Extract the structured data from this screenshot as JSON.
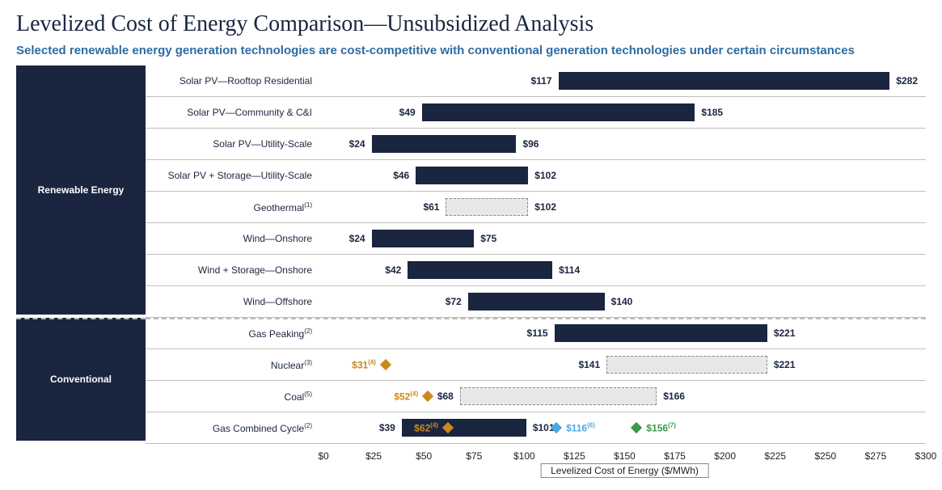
{
  "title": "Levelized Cost of Energy Comparison—Unsubsidized Analysis",
  "subtitle": "Selected renewable energy generation technologies are cost-competitive with conventional generation technologies under certain circumstances",
  "subtitle_color": "#2e6ca4",
  "axis": {
    "title": "Levelized Cost of Energy ($/MWh)",
    "min": 0,
    "max": 300,
    "step": 25,
    "tick_prefix": "$"
  },
  "colors": {
    "bar_solid": "#1a2540",
    "bar_dashed_fill": "#e8e8e8",
    "bar_dashed_border": "#888888",
    "gold": "#c98a1e",
    "blue": "#4aa8e0",
    "green": "#3a9a4a",
    "text": "#1a2540"
  },
  "categories": [
    {
      "label": "Renewable Energy",
      "row_count": 8
    },
    {
      "label": "Conventional",
      "row_count": 4
    }
  ],
  "rows": [
    {
      "label": "Solar PV—Rooftop Residential",
      "low": 117,
      "high": 282,
      "style": "solid"
    },
    {
      "label": "Solar PV—Community & C&I",
      "low": 49,
      "high": 185,
      "style": "solid"
    },
    {
      "label": "Solar PV—Utility-Scale",
      "low": 24,
      "high": 96,
      "style": "solid"
    },
    {
      "label": "Solar PV + Storage—Utility-Scale",
      "low": 46,
      "high": 102,
      "style": "solid"
    },
    {
      "label": "Geothermal",
      "sup": "(1)",
      "low": 61,
      "high": 102,
      "style": "dashed"
    },
    {
      "label": "Wind—Onshore",
      "low": 24,
      "high": 75,
      "style": "solid"
    },
    {
      "label": "Wind + Storage—Onshore",
      "low": 42,
      "high": 114,
      "style": "solid"
    },
    {
      "label": "Wind—Offshore",
      "low": 72,
      "high": 140,
      "style": "solid"
    },
    {
      "label": "Gas Peaking",
      "sup": "(2)",
      "low": 115,
      "high": 221,
      "style": "solid"
    },
    {
      "label": "Nuclear",
      "sup": "(3)",
      "low": 141,
      "high": 221,
      "style": "dashed",
      "markers": [
        {
          "value": 31,
          "color": "gold",
          "label": "$31",
          "label_sup": "(4)",
          "label_side": "left"
        }
      ]
    },
    {
      "label": "Coal",
      "sup": "(5)",
      "low": 68,
      "high": 166,
      "style": "dashed",
      "markers": [
        {
          "value": 52,
          "color": "gold",
          "label": "$52",
          "label_sup": "(4)",
          "label_side": "left"
        }
      ]
    },
    {
      "label": "Gas Combined Cycle",
      "sup": "(2)",
      "low": 39,
      "high": 101,
      "style": "solid",
      "markers": [
        {
          "value": 62,
          "color": "gold",
          "label": "$62",
          "label_sup": "(4)",
          "label_side": "left",
          "label_color": "gold"
        },
        {
          "value": 116,
          "color": "blue",
          "label": "$116",
          "label_sup": "(6)",
          "label_side": "right",
          "label_color": "blue"
        },
        {
          "value": 156,
          "color": "green",
          "label": "$156",
          "label_sup": "(7)",
          "label_side": "right",
          "label_color": "green"
        }
      ]
    }
  ]
}
